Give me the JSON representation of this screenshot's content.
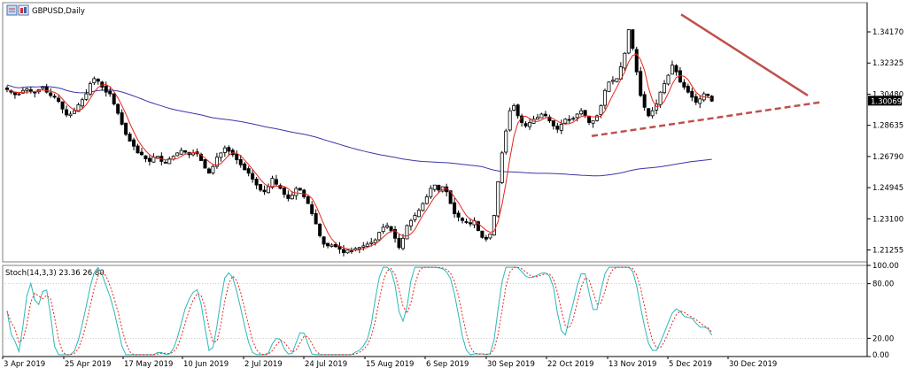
{
  "window": {
    "title": "GBPUSD,Daily",
    "icons": [
      "chart-window-icon",
      "chart-type-icon"
    ]
  },
  "price_panel": {
    "current_price_label": "1.30069",
    "y_ticks": [
      "1.34170",
      "1.32325",
      "1.30480",
      "1.28635",
      "1.26790",
      "1.24945",
      "1.23100",
      "1.21255"
    ]
  },
  "stoch_panel": {
    "label": "Stoch(14,3,3) 23.36 26.80",
    "y_ticks": [
      "100.00",
      "80.00",
      "20.00",
      "0.00"
    ]
  },
  "x_axis": {
    "labels": [
      "3 Apr 2019",
      "25 Apr 2019",
      "17 May 2019",
      "10 Jun 2019",
      "2 Jul 2019",
      "24 Jul 2019",
      "15 Aug 2019",
      "6 Sep 2019",
      "30 Sep 2019",
      "22 Oct 2019",
      "13 Nov 2019",
      "5 Dec 2019",
      "30 Dec 2019"
    ]
  },
  "chart_data": {
    "type": "candlestick",
    "symbol": "GBPUSD",
    "timeframe": "Daily",
    "ylim": [
      1.2055,
      1.359
    ],
    "current_price": 1.30069,
    "close_series": [
      1.3075,
      1.306,
      1.3045,
      1.305,
      1.307,
      1.308,
      1.3065,
      1.3055,
      1.3075,
      1.309,
      1.306,
      1.304,
      1.303,
      1.3005,
      1.296,
      1.2925,
      1.293,
      1.295,
      1.2985,
      1.3015,
      1.305,
      1.311,
      1.314,
      1.3125,
      1.309,
      1.306,
      1.305,
      1.299,
      1.2935,
      1.287,
      1.281,
      1.277,
      1.274,
      1.27,
      1.269,
      1.2665,
      1.265,
      1.2675,
      1.268,
      1.265,
      1.264,
      1.2665,
      1.268,
      1.27,
      1.2715,
      1.2705,
      1.269,
      1.27,
      1.2695,
      1.2655,
      1.261,
      1.258,
      1.262,
      1.2675,
      1.27,
      1.273,
      1.271,
      1.269,
      1.266,
      1.263,
      1.26,
      1.258,
      1.2545,
      1.251,
      1.248,
      1.247,
      1.25,
      1.255,
      1.2515,
      1.249,
      1.2455,
      1.243,
      1.245,
      1.249,
      1.248,
      1.244,
      1.24,
      1.234,
      1.228,
      1.221,
      1.216,
      1.215,
      1.2155,
      1.2145,
      1.213,
      1.211,
      1.2125,
      1.212,
      1.2135,
      1.214,
      1.215,
      1.216,
      1.217,
      1.2185,
      1.223,
      1.226,
      1.227,
      1.224,
      1.2195,
      1.214,
      1.2195,
      1.227,
      1.23,
      1.233,
      1.236,
      1.24,
      1.244,
      1.249,
      1.251,
      1.248,
      1.25,
      1.247,
      1.24,
      1.234,
      1.232,
      1.23,
      1.229,
      1.228,
      1.23,
      1.224,
      1.22,
      1.219,
      1.222,
      1.233,
      1.253,
      1.27,
      1.283,
      1.295,
      1.298,
      1.292,
      1.288,
      1.286,
      1.288,
      1.29,
      1.291,
      1.293,
      1.292,
      1.289,
      1.286,
      1.284,
      1.287,
      1.29,
      1.2895,
      1.2905,
      1.293,
      1.295,
      1.292,
      1.288,
      1.289,
      1.292,
      1.298,
      1.307,
      1.312,
      1.313,
      1.314,
      1.321,
      1.329,
      1.343,
      1.332,
      1.318,
      1.304,
      1.297,
      1.292,
      1.295,
      1.299,
      1.306,
      1.311,
      1.316,
      1.322,
      1.318,
      1.312,
      1.309,
      1.306,
      1.303,
      1.3,
      1.302,
      1.305,
      1.304,
      1.3007
    ],
    "overlays": [
      {
        "type": "moving_average",
        "color": "#e8251b",
        "role": "fast"
      },
      {
        "type": "moving_average",
        "color": "#3b36a8",
        "role": "slow"
      }
    ],
    "trendlines": [
      {
        "style": "solid",
        "color": "#c0504d",
        "from_category": "5 Dec 2019",
        "to_price": 1.304
      },
      {
        "style": "dashed",
        "color": "#c0504d",
        "from_category": "22 Oct 2019",
        "to_price": 1.3
      }
    ],
    "stochastic": {
      "params": "14,3,3",
      "k": 23.36,
      "d": 26.8,
      "levels": [
        80,
        20
      ],
      "ylim": [
        0,
        100
      ],
      "k_color": "#2bb8b8",
      "d_color": "#e8251b"
    }
  }
}
